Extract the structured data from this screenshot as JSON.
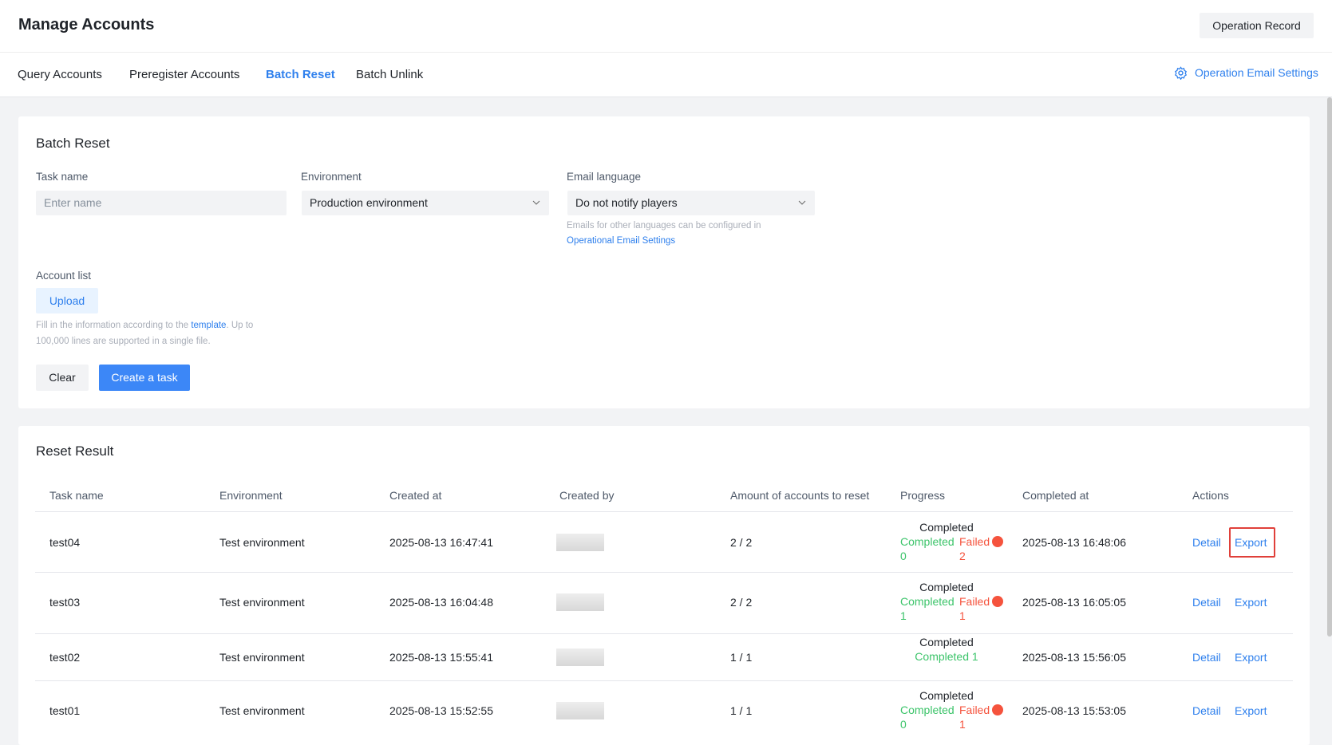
{
  "header": {
    "title": "Manage Accounts",
    "button": "Operation Record"
  },
  "tabs": [
    "Query Accounts",
    "Preregister Accounts",
    "Batch Reset",
    "Batch Unlink"
  ],
  "active_tab": 2,
  "settings_link": "Operation Email Settings",
  "form": {
    "title": "Batch Reset",
    "task_name": {
      "label": "Task name",
      "placeholder": "Enter name"
    },
    "environment": {
      "label": "Environment",
      "value": "Production environment"
    },
    "email_language": {
      "label": "Email language",
      "value": "Do not notify players",
      "hint": "Emails for other languages can be configured in",
      "hint_link": "Operational Email Settings"
    },
    "account_list": {
      "label": "Account list",
      "upload": "Upload",
      "hint_before": "Fill in the information according to the",
      "hint_link": "template",
      "hint_after": ". Up to 100,000 lines are supported in a single file."
    },
    "clear": "Clear",
    "create": "Create a task"
  },
  "results": {
    "title": "Reset Result",
    "columns": [
      "Task name",
      "Environment",
      "Created at",
      "Created by",
      "Amount of accounts to reset",
      "Progress",
      "Completed at",
      "Actions"
    ],
    "rows": [
      {
        "task": "test04",
        "environment": "Test environment",
        "created_at": "2025-08-13 16:47:41",
        "amount": "2 / 2",
        "progress": {
          "status": "Completed",
          "completed_label": "Completed",
          "completed": "0",
          "failed_label": "Failed",
          "failed": "2"
        },
        "completed_at": "2025-08-13 16:48:06",
        "actions": [
          "Detail",
          "Export"
        ]
      },
      {
        "task": "test03",
        "environment": "Test environment",
        "created_at": "2025-08-13 16:04:48",
        "amount": "2 / 2",
        "progress": {
          "status": "Completed",
          "completed_label": "Completed",
          "completed": "1",
          "failed_label": "Failed",
          "failed": "1"
        },
        "completed_at": "2025-08-13 16:05:05",
        "actions": [
          "Detail",
          "Export"
        ]
      },
      {
        "task": "test02",
        "environment": "Test environment",
        "created_at": "2025-08-13 15:55:41",
        "amount": "1 / 1",
        "progress": {
          "status": "Completed",
          "completed_label": "Completed",
          "completed": "1"
        },
        "completed_at": "2025-08-13 15:56:05",
        "actions": [
          "Detail",
          "Export"
        ]
      },
      {
        "task": "test01",
        "environment": "Test environment",
        "created_at": "2025-08-13 15:52:55",
        "amount": "1 / 1",
        "progress": {
          "status": "Completed",
          "completed_label": "Completed",
          "completed": "0",
          "failed_label": "Failed",
          "failed": "1"
        },
        "completed_at": "2025-08-13 15:53:05",
        "actions": [
          "Detail",
          "Export"
        ]
      }
    ]
  }
}
